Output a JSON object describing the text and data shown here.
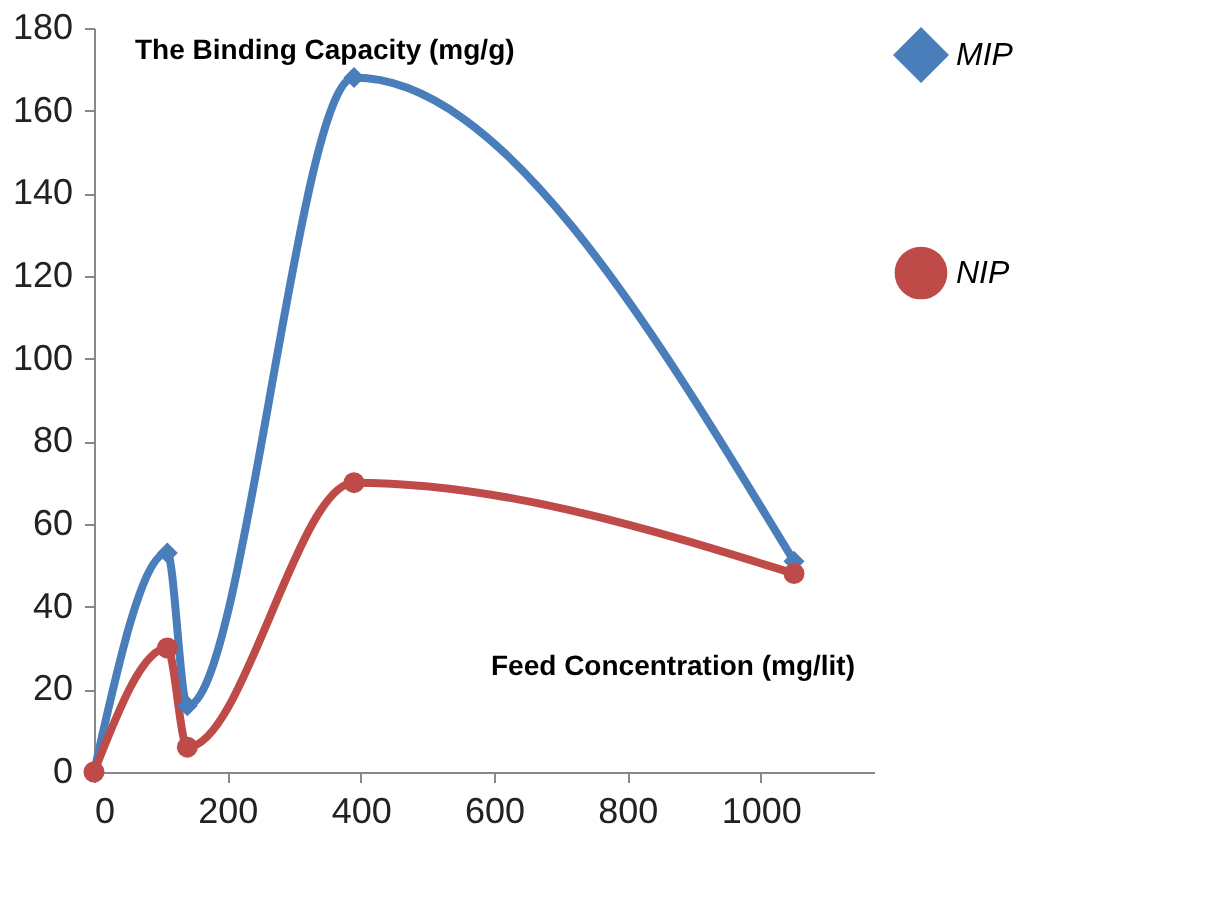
{
  "chart_data": {
    "type": "line",
    "xlabel": "Feed Concentration (mg/lit)",
    "ylabel": "The Binding Capacity (mg/g)",
    "x": [
      0,
      110,
      140,
      390,
      1050
    ],
    "series": [
      {
        "name": "MIP",
        "color": "#4a7ebb",
        "marker": "diamond",
        "values": [
          0,
          53,
          16,
          168,
          51
        ]
      },
      {
        "name": "NIP",
        "color": "#be4b48",
        "marker": "circle",
        "values": [
          0,
          30,
          6,
          70,
          48
        ]
      }
    ],
    "xlim": [
      0,
      1170
    ],
    "xticks": [
      0,
      200,
      400,
      600,
      800,
      1000
    ],
    "ylim": [
      0,
      180
    ],
    "yticks": [
      0,
      20,
      40,
      60,
      80,
      100,
      120,
      140,
      160,
      180
    ],
    "grid": false,
    "legend": "top right",
    "line_style": "solid"
  }
}
